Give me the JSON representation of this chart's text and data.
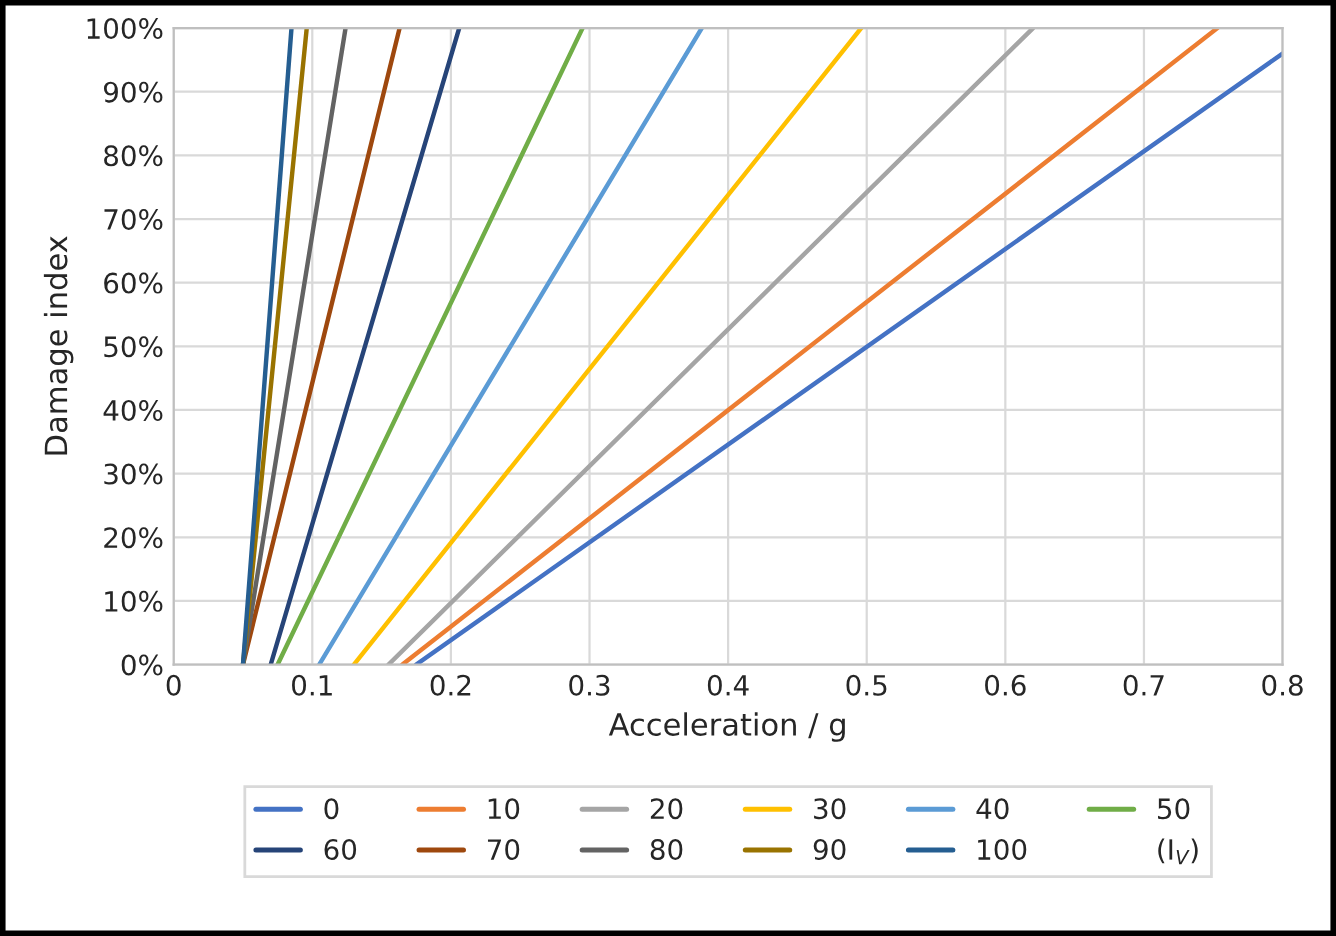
{
  "chart_data": {
    "type": "line",
    "xlabel": "Acceleration / g",
    "ylabel": "Damage index",
    "legend_title": "(I$_{V}$)",
    "series": [
      {
        "name": "0",
        "color": "#4472c4",
        "x": [
          0.175,
          0.8
        ],
        "values": [
          0,
          96
        ]
      },
      {
        "name": "10",
        "color": "#ed7d31",
        "x": [
          0.165,
          0.753
        ],
        "values": [
          0,
          100
        ]
      },
      {
        "name": "20",
        "color": "#a5a5a5",
        "x": [
          0.155,
          0.62
        ],
        "values": [
          0,
          100
        ]
      },
      {
        "name": "30",
        "color": "#ffc000",
        "x": [
          0.13,
          0.496
        ],
        "values": [
          0,
          100
        ]
      },
      {
        "name": "40",
        "color": "#5b9bd5",
        "x": [
          0.105,
          0.381
        ],
        "values": [
          0,
          100
        ]
      },
      {
        "name": "50",
        "color": "#70ad47",
        "x": [
          0.075,
          0.295
        ],
        "values": [
          0,
          100
        ]
      },
      {
        "name": "60",
        "color": "#264478",
        "x": [
          0.07,
          0.206
        ],
        "values": [
          0,
          100
        ]
      },
      {
        "name": "70",
        "color": "#9e480e",
        "x": [
          0.05,
          0.163
        ],
        "values": [
          0,
          100
        ]
      },
      {
        "name": "80",
        "color": "#636363",
        "x": [
          0.05,
          0.124
        ],
        "values": [
          0,
          100
        ]
      },
      {
        "name": "90",
        "color": "#997300",
        "x": [
          0.05,
          0.096
        ],
        "values": [
          0,
          100
        ]
      },
      {
        "name": "100",
        "color": "#255e91",
        "x": [
          0.05,
          0.085
        ],
        "values": [
          0,
          100
        ]
      }
    ],
    "xlim": [
      0,
      0.8
    ],
    "xticks": [
      0,
      0.1,
      0.2,
      0.3,
      0.4,
      0.5,
      0.6,
      0.7,
      0.8
    ],
    "ylim": [
      0,
      100
    ],
    "yticks": [
      {
        "value": 0,
        "label": "0%"
      },
      {
        "value": 10,
        "label": "10%"
      },
      {
        "value": 20,
        "label": "20%"
      },
      {
        "value": 30,
        "label": "30%"
      },
      {
        "value": 40,
        "label": "40%"
      },
      {
        "value": 50,
        "label": "50%"
      },
      {
        "value": 60,
        "label": "60%"
      },
      {
        "value": 70,
        "label": "70%"
      },
      {
        "value": 80,
        "label": "80%"
      },
      {
        "value": 90,
        "label": "90%"
      },
      {
        "value": 100,
        "label": "100%"
      }
    ],
    "grid": true,
    "legend": "bottom",
    "marker": "none",
    "line_style": "solid"
  }
}
